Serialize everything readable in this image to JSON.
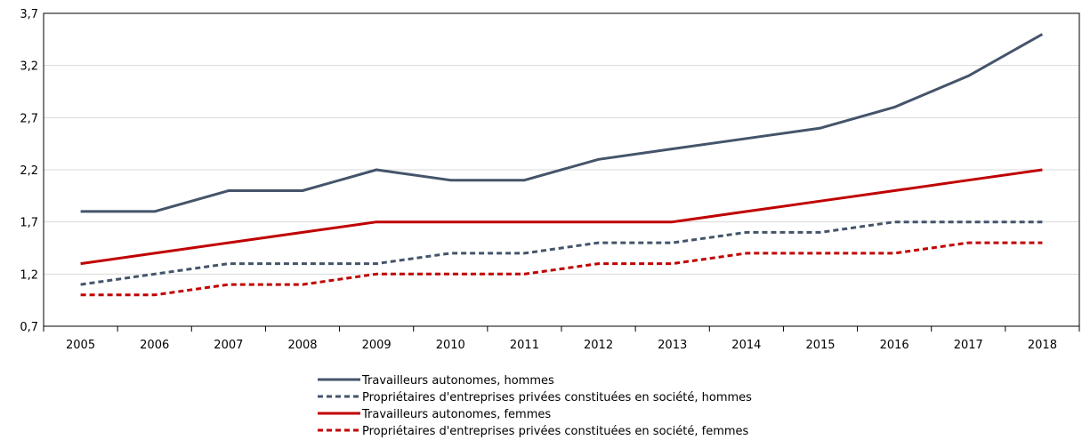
{
  "chart_data": {
    "type": "line",
    "title": "",
    "xlabel": "",
    "ylabel": "",
    "categories": [
      "2005",
      "2006",
      "2007",
      "2008",
      "2009",
      "2010",
      "2011",
      "2012",
      "2013",
      "2014",
      "2015",
      "2016",
      "2017",
      "2018"
    ],
    "ylim": [
      0.7,
      3.7
    ],
    "yticks": [
      "0,7",
      "1,2",
      "1,7",
      "2,2",
      "2,7",
      "3,2",
      "3,7"
    ],
    "ytick_values": [
      0.7,
      1.2,
      1.7,
      2.2,
      2.7,
      3.2,
      3.7
    ],
    "grid": "horizontal",
    "legend_position": "bottom",
    "series": [
      {
        "name": "Travailleurs autonomes, hommes",
        "color": "#44546a",
        "dash": "solid",
        "values": [
          1.8,
          1.8,
          2.0,
          2.0,
          2.2,
          2.1,
          2.1,
          2.3,
          2.4,
          2.5,
          2.6,
          2.8,
          3.1,
          3.5
        ]
      },
      {
        "name": "Propriétaires d'entreprises privées constituées en société, hommes",
        "color": "#44546a",
        "dash": "dashed",
        "values": [
          1.1,
          1.2,
          1.3,
          1.3,
          1.3,
          1.4,
          1.4,
          1.5,
          1.5,
          1.6,
          1.6,
          1.7,
          1.7,
          1.7
        ]
      },
      {
        "name": "Travailleurs autonomes, femmes",
        "color": "#c00000",
        "dash": "solid",
        "values": [
          1.3,
          1.4,
          1.5,
          1.6,
          1.7,
          1.7,
          1.7,
          1.7,
          1.7,
          1.8,
          1.9,
          2.0,
          2.1,
          2.2
        ]
      },
      {
        "name": "Propriétaires d'entreprises privées constituées en société, femmes",
        "color": "#c00000",
        "dash": "dashed",
        "values": [
          1.0,
          1.0,
          1.1,
          1.1,
          1.2,
          1.2,
          1.2,
          1.3,
          1.3,
          1.4,
          1.4,
          1.4,
          1.5,
          1.5
        ]
      }
    ]
  }
}
